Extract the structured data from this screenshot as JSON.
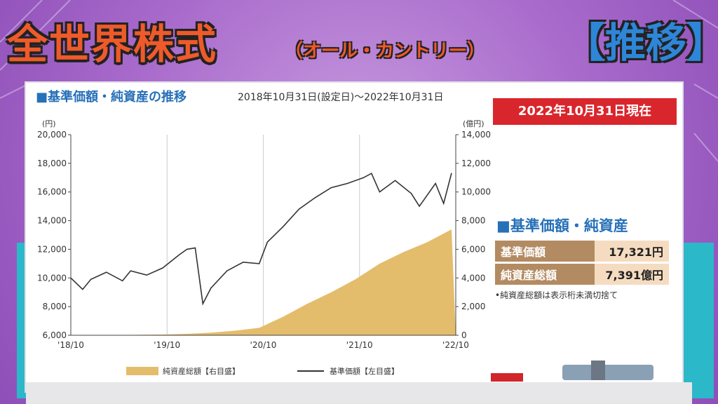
{
  "header": {
    "title": "全世界株式",
    "subtitle": "（オール・カントリー）",
    "tag": "【推移】"
  },
  "chart_title": "■基準価額・純資産の推移",
  "period": "2018年10月31日(設定日)～2022年10月31日",
  "as_of": "2022年10月31日現在",
  "nav_panel": {
    "title": "■基準価額・純資産",
    "rows": [
      {
        "label": "基準価額",
        "value": "17,321円"
      },
      {
        "label": "純資産総額",
        "value": "7,391億円"
      }
    ],
    "note": "•純資産総額は表示桁未満切捨て"
  },
  "colors": {
    "nav_line": "#333333",
    "assets_area": "#e4bd6c",
    "accent_blue": "#2670b8",
    "badge_red": "#d9262c"
  },
  "chart_data": {
    "type": "line",
    "left_unit": "(円)",
    "right_unit": "(億円)",
    "left_ylim": [
      6000,
      20000
    ],
    "right_ylim": [
      0,
      14000
    ],
    "left_ticks": [
      "6,000",
      "8,000",
      "10,000",
      "12,000",
      "14,000",
      "16,000",
      "18,000",
      "20,000"
    ],
    "right_ticks": [
      "0",
      "2,000",
      "4,000",
      "6,000",
      "8,000",
      "10,000",
      "12,000",
      "14,000"
    ],
    "x_ticks": [
      "'18/10",
      "'19/10",
      "'20/10",
      "'21/10",
      "'22/10"
    ],
    "grid": "vertical",
    "legend_position": "bottom",
    "series": [
      {
        "name": "純資産総額【右目盛】",
        "axis": "right",
        "type": "area",
        "x": [
          "2018-10",
          "2019-01",
          "2019-04",
          "2019-07",
          "2019-10",
          "2020-01",
          "2020-04",
          "2020-07",
          "2020-10",
          "2021-01",
          "2021-04",
          "2021-07",
          "2021-10",
          "2022-01",
          "2022-04",
          "2022-07",
          "2022-10"
        ],
        "values": [
          0,
          10,
          20,
          30,
          50,
          100,
          180,
          320,
          520,
          1300,
          2200,
          3000,
          3900,
          5000,
          5800,
          6500,
          7391
        ]
      },
      {
        "name": "基準価額【左目盛】",
        "axis": "left",
        "type": "line",
        "x": [
          "2018-10",
          "2018-12",
          "2019-01",
          "2019-03",
          "2019-05",
          "2019-06",
          "2019-08",
          "2019-10",
          "2019-12",
          "2020-01",
          "2020-02",
          "2020-03",
          "2020-04",
          "2020-06",
          "2020-08",
          "2020-10",
          "2020-11",
          "2021-01",
          "2021-03",
          "2021-05",
          "2021-07",
          "2021-09",
          "2021-11",
          "2021-12",
          "2022-01",
          "2022-03",
          "2022-05",
          "2022-06",
          "2022-08",
          "2022-09",
          "2022-10"
        ],
        "values": [
          10000,
          9200,
          9900,
          10400,
          9800,
          10500,
          10200,
          10700,
          11600,
          12000,
          12100,
          8200,
          9300,
          10500,
          11100,
          11000,
          12500,
          13600,
          14800,
          15600,
          16300,
          16600,
          17000,
          17300,
          16000,
          16800,
          15900,
          15000,
          16600,
          15200,
          17321
        ]
      }
    ]
  }
}
